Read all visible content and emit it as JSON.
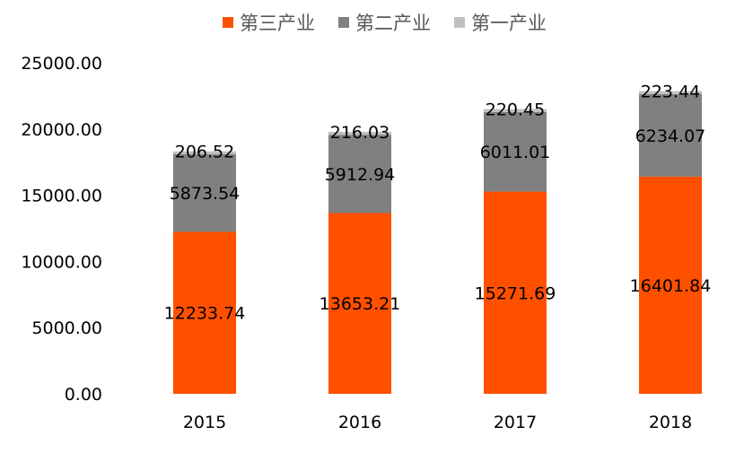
{
  "chart_data": {
    "type": "bar",
    "stacked": true,
    "categories": [
      "2015",
      "2016",
      "2017",
      "2018"
    ],
    "series": [
      {
        "name": "第三产业",
        "color": "#ff5000",
        "values": [
          12233.74,
          13653.21,
          15271.69,
          16401.84
        ]
      },
      {
        "name": "第二产业",
        "color": "#808080",
        "values": [
          5873.54,
          5912.94,
          6011.01,
          6234.07
        ]
      },
      {
        "name": "第一产业",
        "color": "#c0c0c0",
        "values": [
          206.52,
          216.03,
          220.45,
          223.44
        ]
      }
    ],
    "value_labels": {
      "第三产业": [
        "12233.74",
        "13653.21",
        "15271.69",
        "16401.84"
      ],
      "第二产业": [
        "5873.54",
        "5912.94",
        "6011.01",
        "6234.07"
      ],
      "第一产业": [
        "206.52",
        "216.03",
        "220.45",
        "223.44"
      ]
    },
    "y_ticks": [
      "0.00",
      "5000.00",
      "10000.00",
      "15000.00",
      "20000.00",
      "25000.00"
    ],
    "ylim": [
      0,
      25000
    ],
    "grid": false,
    "legend_position": "top-center",
    "title": "",
    "xlabel": "",
    "ylabel": ""
  }
}
